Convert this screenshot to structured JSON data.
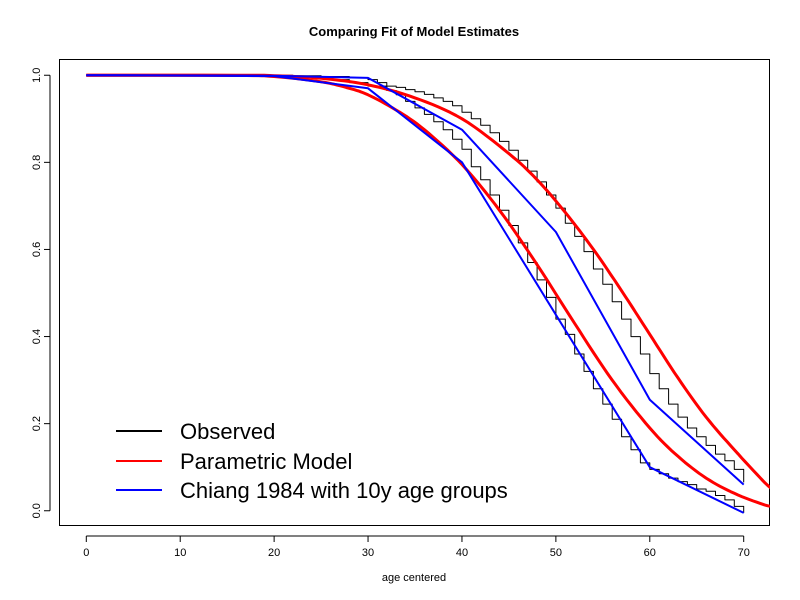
{
  "chart_data": {
    "type": "line",
    "title": "Comparing Fit of Model Estimates",
    "xlabel": "age centered",
    "ylabel": "",
    "xlim": [
      -2.8,
      72.8
    ],
    "ylim": [
      -0.035,
      1.035
    ],
    "x_ticks": [
      0,
      10,
      20,
      30,
      40,
      50,
      60,
      70
    ],
    "y_ticks": [
      0.0,
      0.2,
      0.4,
      0.6,
      0.8,
      1.0
    ],
    "x_tick_labels": [
      "0",
      "10",
      "20",
      "30",
      "40",
      "50",
      "60",
      "70"
    ],
    "y_tick_labels": [
      "0.0",
      "0.2",
      "0.4",
      "0.6",
      "0.8",
      "1.0"
    ],
    "grid": false,
    "legend_position": "bottom-left",
    "series": [
      {
        "name": "Observed",
        "color": "#000000",
        "style": "step",
        "curves": [
          [
            [
              0,
              1.0
            ],
            [
              16,
              1.0
            ],
            [
              20,
              0.998
            ],
            [
              23,
              0.994
            ],
            [
              26,
              0.99
            ],
            [
              28,
              0.983
            ],
            [
              30,
              0.975
            ],
            [
              32,
              0.965
            ],
            [
              33,
              0.955
            ],
            [
              34,
              0.94
            ],
            [
              35,
              0.925
            ],
            [
              36,
              0.91
            ],
            [
              37,
              0.893
            ],
            [
              38,
              0.875
            ],
            [
              39,
              0.853
            ],
            [
              40,
              0.83
            ],
            [
              41,
              0.79
            ],
            [
              42,
              0.76
            ],
            [
              43,
              0.725
            ],
            [
              44,
              0.69
            ],
            [
              45,
              0.655
            ],
            [
              46,
              0.615
            ],
            [
              47,
              0.57
            ],
            [
              48,
              0.53
            ],
            [
              49,
              0.49
            ],
            [
              50,
              0.44
            ],
            [
              51,
              0.405
            ],
            [
              52,
              0.36
            ],
            [
              53,
              0.32
            ],
            [
              54,
              0.28
            ],
            [
              55,
              0.245
            ],
            [
              56,
              0.21
            ],
            [
              57,
              0.17
            ],
            [
              58,
              0.14
            ],
            [
              59,
              0.11
            ],
            [
              60,
              0.095
            ],
            [
              61,
              0.085
            ],
            [
              62,
              0.075
            ],
            [
              63,
              0.067
            ],
            [
              64,
              0.06
            ],
            [
              65,
              0.05
            ],
            [
              66,
              0.045
            ],
            [
              67,
              0.035
            ],
            [
              68,
              0.025
            ],
            [
              69,
              0.01
            ],
            [
              70,
              -0.005
            ]
          ],
          [
            [
              0,
              1.0
            ],
            [
              16,
              1.0
            ],
            [
              22,
              0.999
            ],
            [
              25,
              0.997
            ],
            [
              28,
              0.994
            ],
            [
              30,
              0.99
            ],
            [
              31,
              0.983
            ],
            [
              32,
              0.975
            ],
            [
              33,
              0.972
            ],
            [
              34,
              0.967
            ],
            [
              35,
              0.962
            ],
            [
              36,
              0.956
            ],
            [
              37,
              0.948
            ],
            [
              38,
              0.94
            ],
            [
              39,
              0.93
            ],
            [
              40,
              0.915
            ],
            [
              41,
              0.9
            ],
            [
              42,
              0.885
            ],
            [
              43,
              0.868
            ],
            [
              44,
              0.848
            ],
            [
              45,
              0.828
            ],
            [
              46,
              0.805
            ],
            [
              47,
              0.78
            ],
            [
              48,
              0.755
            ],
            [
              49,
              0.725
            ],
            [
              50,
              0.695
            ],
            [
              51,
              0.66
            ],
            [
              52,
              0.63
            ],
            [
              53,
              0.595
            ],
            [
              54,
              0.555
            ],
            [
              55,
              0.52
            ],
            [
              56,
              0.48
            ],
            [
              57,
              0.44
            ],
            [
              58,
              0.4
            ],
            [
              59,
              0.36
            ],
            [
              60,
              0.315
            ],
            [
              61,
              0.28
            ],
            [
              62,
              0.245
            ],
            [
              63,
              0.215
            ],
            [
              64,
              0.19
            ],
            [
              65,
              0.17
            ],
            [
              66,
              0.15
            ],
            [
              67,
              0.13
            ],
            [
              68,
              0.115
            ],
            [
              69,
              0.095
            ],
            [
              70,
              0.065
            ]
          ]
        ]
      },
      {
        "name": "Parametric Model",
        "color": "#ff0000",
        "style": "smooth",
        "curves": [
          [
            [
              0,
              1.0
            ],
            [
              16,
              0.9995
            ],
            [
              20,
              0.997
            ],
            [
              25,
              0.985
            ],
            [
              28,
              0.97
            ],
            [
              30,
              0.955
            ],
            [
              33,
              0.92
            ],
            [
              36,
              0.875
            ],
            [
              40,
              0.795
            ],
            [
              44,
              0.69
            ],
            [
              48,
              0.565
            ],
            [
              52,
              0.43
            ],
            [
              56,
              0.3
            ],
            [
              60,
              0.19
            ],
            [
              63,
              0.125
            ],
            [
              66,
              0.075
            ],
            [
              69,
              0.04
            ],
            [
              72,
              0.015
            ],
            [
              73,
              0.01
            ]
          ],
          [
            [
              0,
              1.0
            ],
            [
              16,
              1.0
            ],
            [
              20,
              0.999
            ],
            [
              25,
              0.993
            ],
            [
              30,
              0.978
            ],
            [
              35,
              0.948
            ],
            [
              40,
              0.9
            ],
            [
              45,
              0.82
            ],
            [
              48,
              0.76
            ],
            [
              51,
              0.685
            ],
            [
              54,
              0.6
            ],
            [
              57,
              0.505
            ],
            [
              60,
              0.405
            ],
            [
              63,
              0.305
            ],
            [
              66,
              0.215
            ],
            [
              69,
              0.14
            ],
            [
              72,
              0.07
            ],
            [
              73,
              0.05
            ]
          ]
        ]
      },
      {
        "name": "Chiang 1984 with 10y age groups",
        "color": "#0000ff",
        "style": "line",
        "curves": [
          [
            [
              0,
              1.0
            ],
            [
              20,
              0.998
            ],
            [
              30,
              0.97
            ],
            [
              40,
              0.8
            ],
            [
              50,
              0.45
            ],
            [
              60,
              0.1
            ],
            [
              70,
              -0.005
            ]
          ],
          [
            [
              0,
              1.0
            ],
            [
              20,
              0.999
            ],
            [
              30,
              0.994
            ],
            [
              40,
              0.875
            ],
            [
              50,
              0.64
            ],
            [
              60,
              0.255
            ],
            [
              70,
              0.06
            ]
          ]
        ]
      }
    ]
  }
}
